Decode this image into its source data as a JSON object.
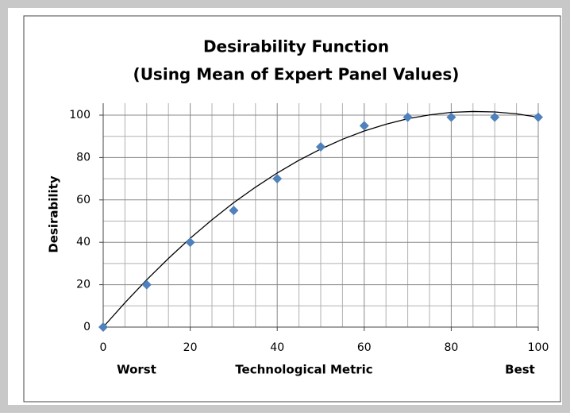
{
  "chart_data": {
    "type": "scatter",
    "title": "Desirability Function",
    "subtitle": "(Using Mean of Expert Panel Values)",
    "x_label": "Technological Metric",
    "y_label": "Desirability",
    "annotations": [
      "Worst",
      "Best"
    ],
    "x": [
      0,
      10,
      20,
      30,
      40,
      50,
      60,
      70,
      80,
      90,
      100
    ],
    "series": [
      {
        "color": "#4f81bd",
        "values": [
          0,
          20,
          40,
          55,
          70,
          85,
          95,
          99,
          99,
          99,
          99
        ]
      }
    ],
    "trendline": {
      "color": "#000000",
      "x": [
        0,
        5,
        10,
        15,
        20,
        25,
        30,
        35,
        40,
        45,
        50,
        55,
        60,
        65,
        70,
        75,
        80,
        85,
        90,
        95,
        100
      ],
      "values": [
        0,
        11.5,
        22.3,
        32.4,
        41.9,
        50.6,
        58.7,
        66.0,
        72.7,
        78.7,
        84.0,
        88.6,
        92.5,
        95.7,
        98.3,
        100.1,
        101.3,
        101.7,
        101.5,
        100.6,
        99.0
      ]
    },
    "xlim": [
      0,
      100
    ],
    "ylim": [
      0,
      100
    ],
    "xticks": [
      0,
      20,
      40,
      60,
      80,
      100
    ],
    "yticks": [
      0,
      20,
      40,
      60,
      80,
      100
    ],
    "xminor": [
      5,
      10,
      15,
      25,
      30,
      35,
      45,
      50,
      55,
      65,
      70,
      75,
      85,
      90,
      95
    ],
    "yminor": [
      10,
      30,
      50,
      70,
      90
    ],
    "grid": true
  }
}
